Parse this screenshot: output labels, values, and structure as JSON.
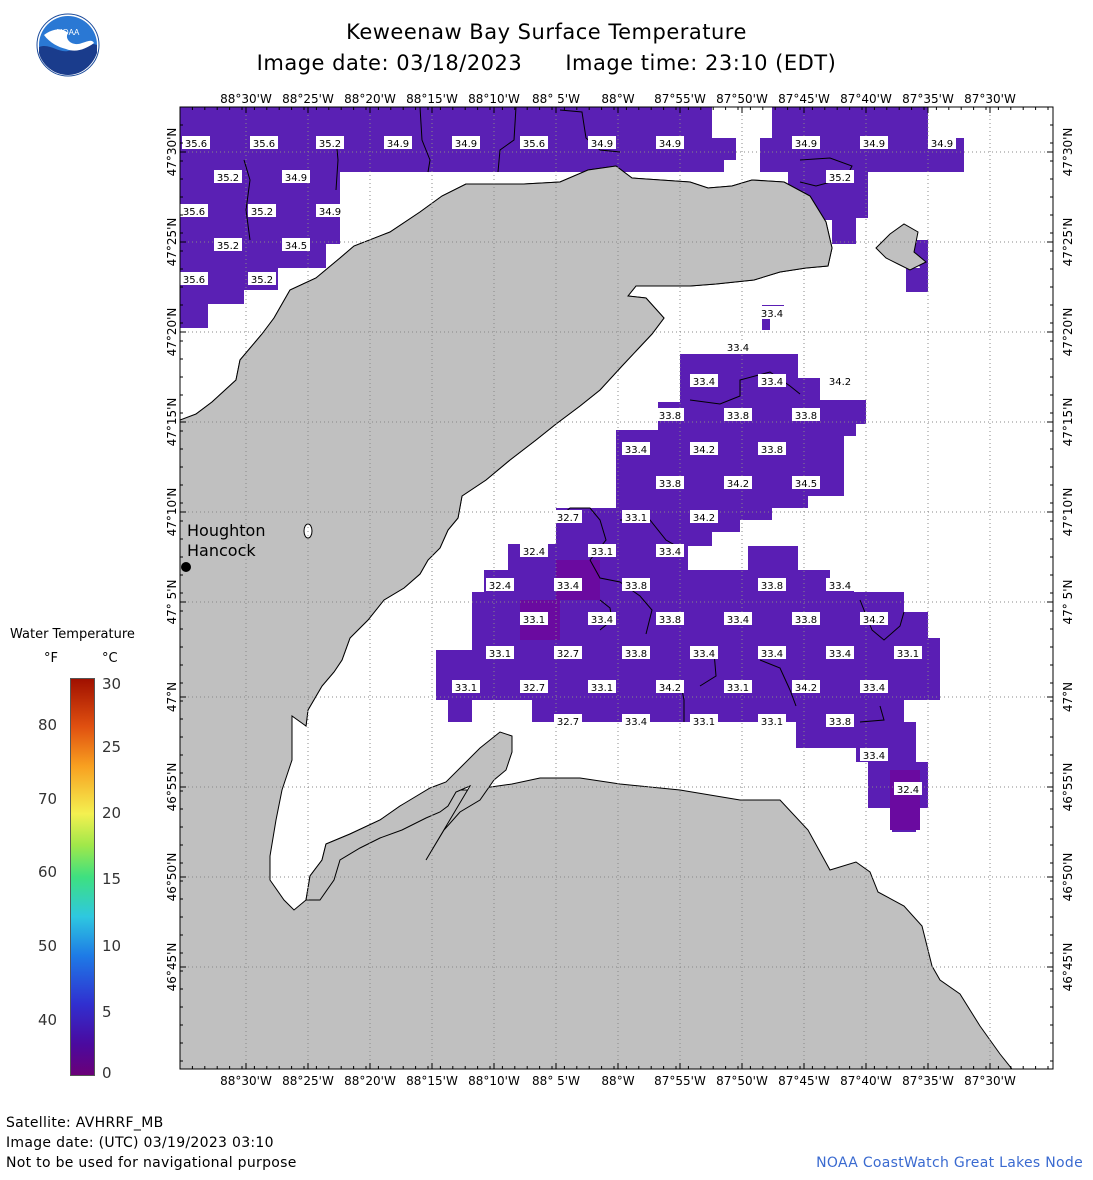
{
  "header": {
    "title": "Keweenaw Bay Surface Temperature",
    "date_label": "Image date: 03/18/2023",
    "time_label": "Image time: 23:10 (EDT)"
  },
  "logo": {
    "icon": "noaa-logo-icon"
  },
  "footer": {
    "satellite": "Satellite: AVHRRF_MB",
    "utc_date": "Image date: (UTC) 03/19/2023  03:10",
    "disclaimer": "Not to be used for navigational purpose",
    "credit": "NOAA CoastWatch Great Lakes Node"
  },
  "legend": {
    "title": "Water Temperature",
    "unit_f": "°F",
    "unit_c": "°C",
    "ticks_f": [
      "80",
      "70",
      "60",
      "50",
      "40"
    ],
    "ticks_c": [
      "30",
      "25",
      "20",
      "15",
      "10",
      "5",
      "0"
    ]
  },
  "map": {
    "city_labels": [
      "Houghton",
      "Hancock"
    ],
    "lon_labels": [
      "88°30'W",
      "88°25'W",
      "88°20'W",
      "88°15'W",
      "88°10'W",
      "88° 5'W",
      "88°W",
      "87°55'W",
      "87°50'W",
      "87°45'W",
      "87°40'W",
      "87°35'W",
      "87°30'W"
    ],
    "lat_labels": [
      "47°30'N",
      "47°25'N",
      "47°20'N",
      "47°15'N",
      "47°10'N",
      "47° 5'N",
      "47°N",
      "46°55'N",
      "46°50'N",
      "46°45'N"
    ],
    "colors": {
      "land": "#c0c0c0",
      "water_temp": "#5a1eb4",
      "water_temp_cold": "#6a0aa0",
      "grid": "#888888"
    }
  },
  "temperature_labels": [
    {
      "row": 0,
      "values": [
        "35.6",
        "35.6",
        "35.2",
        "34.9",
        "34.9",
        "35.6",
        "34.9",
        "34.9",
        "34.9",
        "34.9",
        "34.9"
      ]
    },
    {
      "row": 1,
      "values": [
        "35.2",
        "34.9",
        "35.2"
      ]
    },
    {
      "row": 2,
      "values": [
        "35.6",
        "35.2",
        "34.9"
      ]
    },
    {
      "row": 3,
      "values": [
        "35.2",
        "34.5"
      ]
    },
    {
      "row": 4,
      "values": [
        "35.6",
        "35.2"
      ]
    },
    {
      "row": 5,
      "values": [
        "33.4"
      ]
    },
    {
      "row": 6,
      "values": [
        "33.4"
      ]
    },
    {
      "row": 7,
      "values": [
        "33.4",
        "33.4",
        "34.2"
      ]
    },
    {
      "row": 8,
      "values": [
        "33.8",
        "33.8",
        "33.8"
      ]
    },
    {
      "row": 9,
      "values": [
        "33.4",
        "34.2",
        "33.8"
      ]
    },
    {
      "row": 10,
      "values": [
        "33.8",
        "34.2",
        "34.5"
      ]
    },
    {
      "row": 11,
      "values": [
        "32.7",
        "33.1",
        "34.2"
      ]
    },
    {
      "row": 12,
      "values": [
        "32.4",
        "33.1",
        "33.4"
      ]
    },
    {
      "row": 13,
      "values": [
        "32.4",
        "33.4",
        "33.8",
        "33.8",
        "33.4"
      ]
    },
    {
      "row": 14,
      "values": [
        "33.1",
        "33.4",
        "33.8",
        "33.4",
        "33.8",
        "34.2"
      ]
    },
    {
      "row": 15,
      "values": [
        "33.1",
        "32.7",
        "33.8",
        "33.4",
        "33.4",
        "33.4",
        "33.1"
      ]
    },
    {
      "row": 16,
      "values": [
        "33.1",
        "32.7",
        "33.1",
        "34.2",
        "33.1",
        "34.2",
        "33.4"
      ]
    },
    {
      "row": 17,
      "values": [
        "32.7",
        "33.4",
        "33.1",
        "33.1",
        "33.8"
      ]
    },
    {
      "row": 18,
      "values": [
        "33.4"
      ]
    },
    {
      "row": 19,
      "values": [
        "32.4"
      ]
    }
  ]
}
